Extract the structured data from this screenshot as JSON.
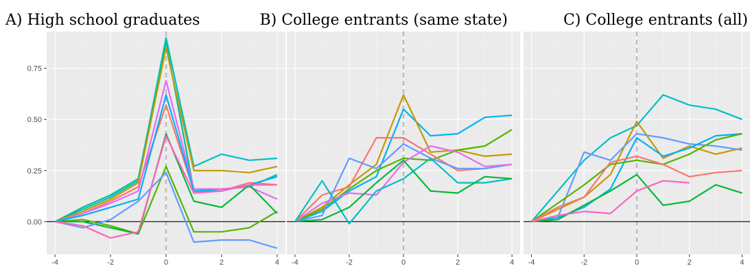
{
  "chart_data": [
    {
      "type": "line",
      "title": "A) High school graduates",
      "xlabel": "",
      "ylabel": "",
      "x": [
        -4,
        -3,
        -2,
        -1,
        0,
        1,
        2,
        3,
        4
      ],
      "xticks": [
        "-4",
        "-2",
        "0",
        "2",
        "4"
      ],
      "yticks": [
        "0.00",
        "0.25",
        "0.50",
        "0.75"
      ],
      "xlim": [
        -4.3,
        4.3
      ],
      "ylim": [
        -0.16,
        0.93
      ],
      "grid": true,
      "reference_lines": {
        "vertical_dashed_at": 0,
        "horizontal_at": 0
      },
      "series": [
        {
          "color": "#00BFC4",
          "values": [
            0,
            0.06,
            0.12,
            0.2,
            0.9,
            0.27,
            0.33,
            0.3,
            0.31
          ]
        },
        {
          "color": "#00C094",
          "values": [
            0,
            0.07,
            0.13,
            0.21,
            0.88,
            0.15,
            0.16,
            0.17,
            0.23
          ]
        },
        {
          "color": "#C49A00",
          "values": [
            0,
            0.05,
            0.11,
            0.19,
            0.85,
            0.25,
            0.25,
            0.24,
            0.27
          ]
        },
        {
          "color": "#F8766D",
          "values": [
            0,
            0.04,
            0.1,
            0.17,
            0.57,
            0.15,
            0.15,
            0.19,
            0.18
          ]
        },
        {
          "color": "#E76BF3",
          "values": [
            0,
            0.04,
            0.09,
            0.15,
            0.69,
            0.16,
            0.16,
            0.17,
            0.11
          ]
        },
        {
          "color": "#00B0F6",
          "values": [
            0,
            0.03,
            0.07,
            0.11,
            0.62,
            0.15,
            0.15,
            0.18,
            0.22
          ]
        },
        {
          "color": "#53B400",
          "values": [
            0,
            0.01,
            -0.02,
            -0.06,
            0.27,
            -0.05,
            -0.05,
            -0.03,
            0.05
          ]
        },
        {
          "color": "#00BA38",
          "values": [
            0,
            0.0,
            -0.03,
            -0.06,
            0.43,
            0.1,
            0.07,
            0.18,
            0.04
          ]
        },
        {
          "color": "#619CFF",
          "values": [
            0,
            -0.03,
            0.01,
            0.1,
            0.24,
            -0.1,
            -0.09,
            -0.09,
            -0.13
          ]
        },
        {
          "color": "#FF62BC",
          "values": [
            0,
            -0.02,
            -0.08,
            -0.05,
            0.42,
            0.14,
            0.15,
            0.18,
            0.18
          ]
        }
      ]
    },
    {
      "type": "line",
      "title": "B) College entrants (same state)",
      "xlabel": "",
      "ylabel": "",
      "x": [
        -4,
        -3,
        -2,
        -1,
        0,
        1,
        2,
        3,
        4
      ],
      "xticks": [
        "-4",
        "-2",
        "0",
        "2",
        "4"
      ],
      "xlim": [
        -4.3,
        4.3
      ],
      "ylim": [
        -0.16,
        0.93
      ],
      "grid": true,
      "reference_lines": {
        "vertical_dashed_at": 0,
        "horizontal_at": 0
      },
      "series": [
        {
          "color": "#00B0F6",
          "values": [
            0,
            0.05,
            0.15,
            0.22,
            0.55,
            0.42,
            0.43,
            0.51,
            0.52
          ]
        },
        {
          "color": "#C49A00",
          "values": [
            0,
            0.07,
            0.18,
            0.28,
            0.62,
            0.34,
            0.35,
            0.32,
            0.33
          ]
        },
        {
          "color": "#53B400",
          "values": [
            0,
            0.06,
            0.16,
            0.25,
            0.31,
            0.3,
            0.35,
            0.37,
            0.45
          ]
        },
        {
          "color": "#F8766D",
          "values": [
            0,
            0.13,
            0.17,
            0.41,
            0.41,
            0.33,
            0.25,
            0.26,
            0.28
          ]
        },
        {
          "color": "#619CFF",
          "values": [
            0,
            0.03,
            0.31,
            0.26,
            0.38,
            0.31,
            0.26,
            0.26,
            0.28
          ]
        },
        {
          "color": "#E76BF3",
          "values": [
            0,
            0.09,
            0.14,
            0.13,
            0.29,
            0.37,
            0.34,
            0.27,
            0.28
          ]
        },
        {
          "color": "#00BFC4",
          "values": [
            0,
            0.2,
            -0.01,
            0.15,
            0.21,
            0.31,
            0.19,
            0.19,
            0.21
          ]
        },
        {
          "color": "#00BA38",
          "values": [
            0,
            0.01,
            0.07,
            0.19,
            0.3,
            0.15,
            0.14,
            0.22,
            0.21
          ]
        }
      ]
    },
    {
      "type": "line",
      "title": "C) College entrants (all)",
      "xlabel": "",
      "ylabel": "",
      "x": [
        -4,
        -3,
        -2,
        -1,
        0,
        1,
        2,
        3,
        4
      ],
      "xticks": [
        "-4",
        "-2",
        "0",
        "2",
        "4"
      ],
      "xlim": [
        -4.3,
        4.3
      ],
      "ylim": [
        -0.16,
        0.93
      ],
      "grid": true,
      "reference_lines": {
        "vertical_dashed_at": 0,
        "horizontal_at": 0
      },
      "series": [
        {
          "color": "#00BFC4",
          "values": [
            0,
            0.15,
            0.3,
            0.41,
            0.47,
            0.62,
            0.57,
            0.55,
            0.5
          ]
        },
        {
          "color": "#C49A00",
          "values": [
            0,
            0.06,
            0.12,
            0.23,
            0.49,
            0.31,
            0.37,
            0.33,
            0.36
          ]
        },
        {
          "color": "#619CFF",
          "values": [
            0,
            0.02,
            0.34,
            0.3,
            0.43,
            0.41,
            0.38,
            0.37,
            0.35
          ]
        },
        {
          "color": "#00B0F6",
          "values": [
            0,
            0.02,
            0.07,
            0.16,
            0.41,
            0.32,
            0.36,
            0.42,
            0.43
          ]
        },
        {
          "color": "#53B400",
          "values": [
            0,
            0.09,
            0.18,
            0.28,
            0.3,
            0.28,
            0.33,
            0.4,
            0.43
          ]
        },
        {
          "color": "#F8766D",
          "values": [
            0,
            0.07,
            0.12,
            0.29,
            0.32,
            0.28,
            0.22,
            0.24,
            0.25
          ]
        },
        {
          "color": "#00BA38",
          "values": [
            0,
            0.01,
            0.08,
            0.15,
            0.23,
            0.08,
            0.1,
            0.18,
            0.14
          ]
        },
        {
          "color": "#FF62BC",
          "values": [
            0,
            0.03,
            0.05,
            0.04,
            0.15,
            0.2,
            0.19,
            null,
            null
          ]
        }
      ]
    }
  ]
}
